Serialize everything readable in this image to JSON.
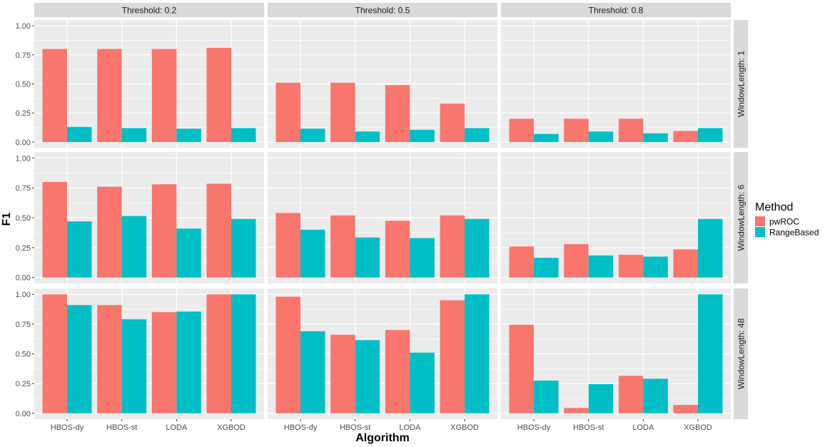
{
  "chart_data": {
    "type": "bar",
    "faceted": true,
    "xlabel": "Algorithm",
    "ylabel": "F1",
    "ylim": [
      0,
      1
    ],
    "yticks": [
      "0.00",
      "0.25",
      "0.50",
      "0.75",
      "1.00"
    ],
    "ytick_values": [
      0,
      0.25,
      0.5,
      0.75,
      1
    ],
    "categories": [
      "HBOS-dy",
      "HBOS-st",
      "LODA",
      "XGBOD"
    ],
    "legend": {
      "title": "Method",
      "position": "right",
      "entries": [
        {
          "name": "pwROC",
          "color": "#F8766D"
        },
        {
          "name": "RangeBased",
          "color": "#00BFC4"
        }
      ]
    },
    "column_facets": [
      "Threshold: 0.2",
      "Threshold: 0.5",
      "Threshold: 0.8"
    ],
    "row_facets": [
      "WindowLength: 1",
      "WindowLength: 6",
      "WindowLength: 48"
    ],
    "panels": [
      [
        {
          "pwROC": [
            0.8,
            0.8,
            0.8,
            0.81
          ],
          "RangeBased": [
            0.13,
            0.12,
            0.115,
            0.12
          ]
        },
        {
          "pwROC": [
            0.51,
            0.51,
            0.49,
            0.33
          ],
          "RangeBased": [
            0.115,
            0.09,
            0.105,
            0.12
          ]
        },
        {
          "pwROC": [
            0.2,
            0.2,
            0.2,
            0.095
          ],
          "RangeBased": [
            0.07,
            0.09,
            0.075,
            0.12
          ]
        }
      ],
      [
        {
          "pwROC": [
            0.8,
            0.76,
            0.78,
            0.785
          ],
          "RangeBased": [
            0.47,
            0.515,
            0.41,
            0.49
          ]
        },
        {
          "pwROC": [
            0.54,
            0.52,
            0.475,
            0.52
          ],
          "RangeBased": [
            0.4,
            0.335,
            0.33,
            0.49
          ]
        },
        {
          "pwROC": [
            0.26,
            0.28,
            0.19,
            0.235
          ],
          "RangeBased": [
            0.165,
            0.185,
            0.175,
            0.49
          ]
        }
      ],
      [
        {
          "pwROC": [
            1.0,
            0.91,
            0.85,
            1.0
          ],
          "RangeBased": [
            0.91,
            0.79,
            0.855,
            1.0
          ]
        },
        {
          "pwROC": [
            0.98,
            0.66,
            0.7,
            0.95
          ],
          "RangeBased": [
            0.69,
            0.615,
            0.51,
            1.0
          ]
        },
        {
          "pwROC": [
            0.745,
            0.045,
            0.315,
            0.07
          ],
          "RangeBased": [
            0.275,
            0.245,
            0.29,
            1.0
          ]
        }
      ]
    ]
  }
}
